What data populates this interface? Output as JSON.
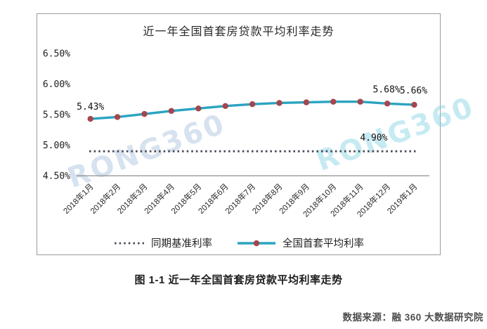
{
  "caption": "图 1-1 近一年全国首套房贷款平均利率走势",
  "source": "数据来源：融 360 大数据研究院",
  "watermarks": [
    {
      "text": "RONG360"
    },
    {
      "text": "RONG360"
    }
  ],
  "chart_data": {
    "type": "line",
    "title": "近一年全国首套房贷款平均利率走势",
    "categories": [
      "2018年1月",
      "2018年2月",
      "2018年3月",
      "2018年4月",
      "2018年5月",
      "2018年6月",
      "2018年7月",
      "2018年8月",
      "2018年9月",
      "2018年10月",
      "2018年11月",
      "2018年12月",
      "2019年1月"
    ],
    "series": [
      {
        "name": "同期基准利率",
        "type": "constant",
        "value": 4.9,
        "style": "dotted",
        "color": "#4a4d58"
      },
      {
        "name": "全国首套平均利率",
        "type": "line",
        "style": "solid",
        "color": "#2ba4c0",
        "marker_color": "#a4464e",
        "values": [
          5.43,
          5.46,
          5.51,
          5.56,
          5.6,
          5.64,
          5.67,
          5.69,
          5.7,
          5.71,
          5.71,
          5.68,
          5.66
        ]
      }
    ],
    "annotations": [
      {
        "label": "5.43%",
        "for": "2018年1月"
      },
      {
        "label": "5.68%",
        "for": "2018年12月"
      },
      {
        "label": "5.66%",
        "for": "2019年1月"
      },
      {
        "label": "4.90%",
        "for": "benchmark"
      }
    ],
    "y_ticks": [
      {
        "value": 6.5,
        "label": "6.50%"
      },
      {
        "value": 6.0,
        "label": "6.00%"
      },
      {
        "value": 5.5,
        "label": "5.50%"
      },
      {
        "value": 5.0,
        "label": "5.00%"
      },
      {
        "value": 4.5,
        "label": "4.50%"
      }
    ],
    "ylim": [
      4.5,
      6.5
    ],
    "grid": false,
    "legend_position": "bottom",
    "axis_color": "#8f8f8f",
    "tick_text_color": "#1e1e1e"
  }
}
